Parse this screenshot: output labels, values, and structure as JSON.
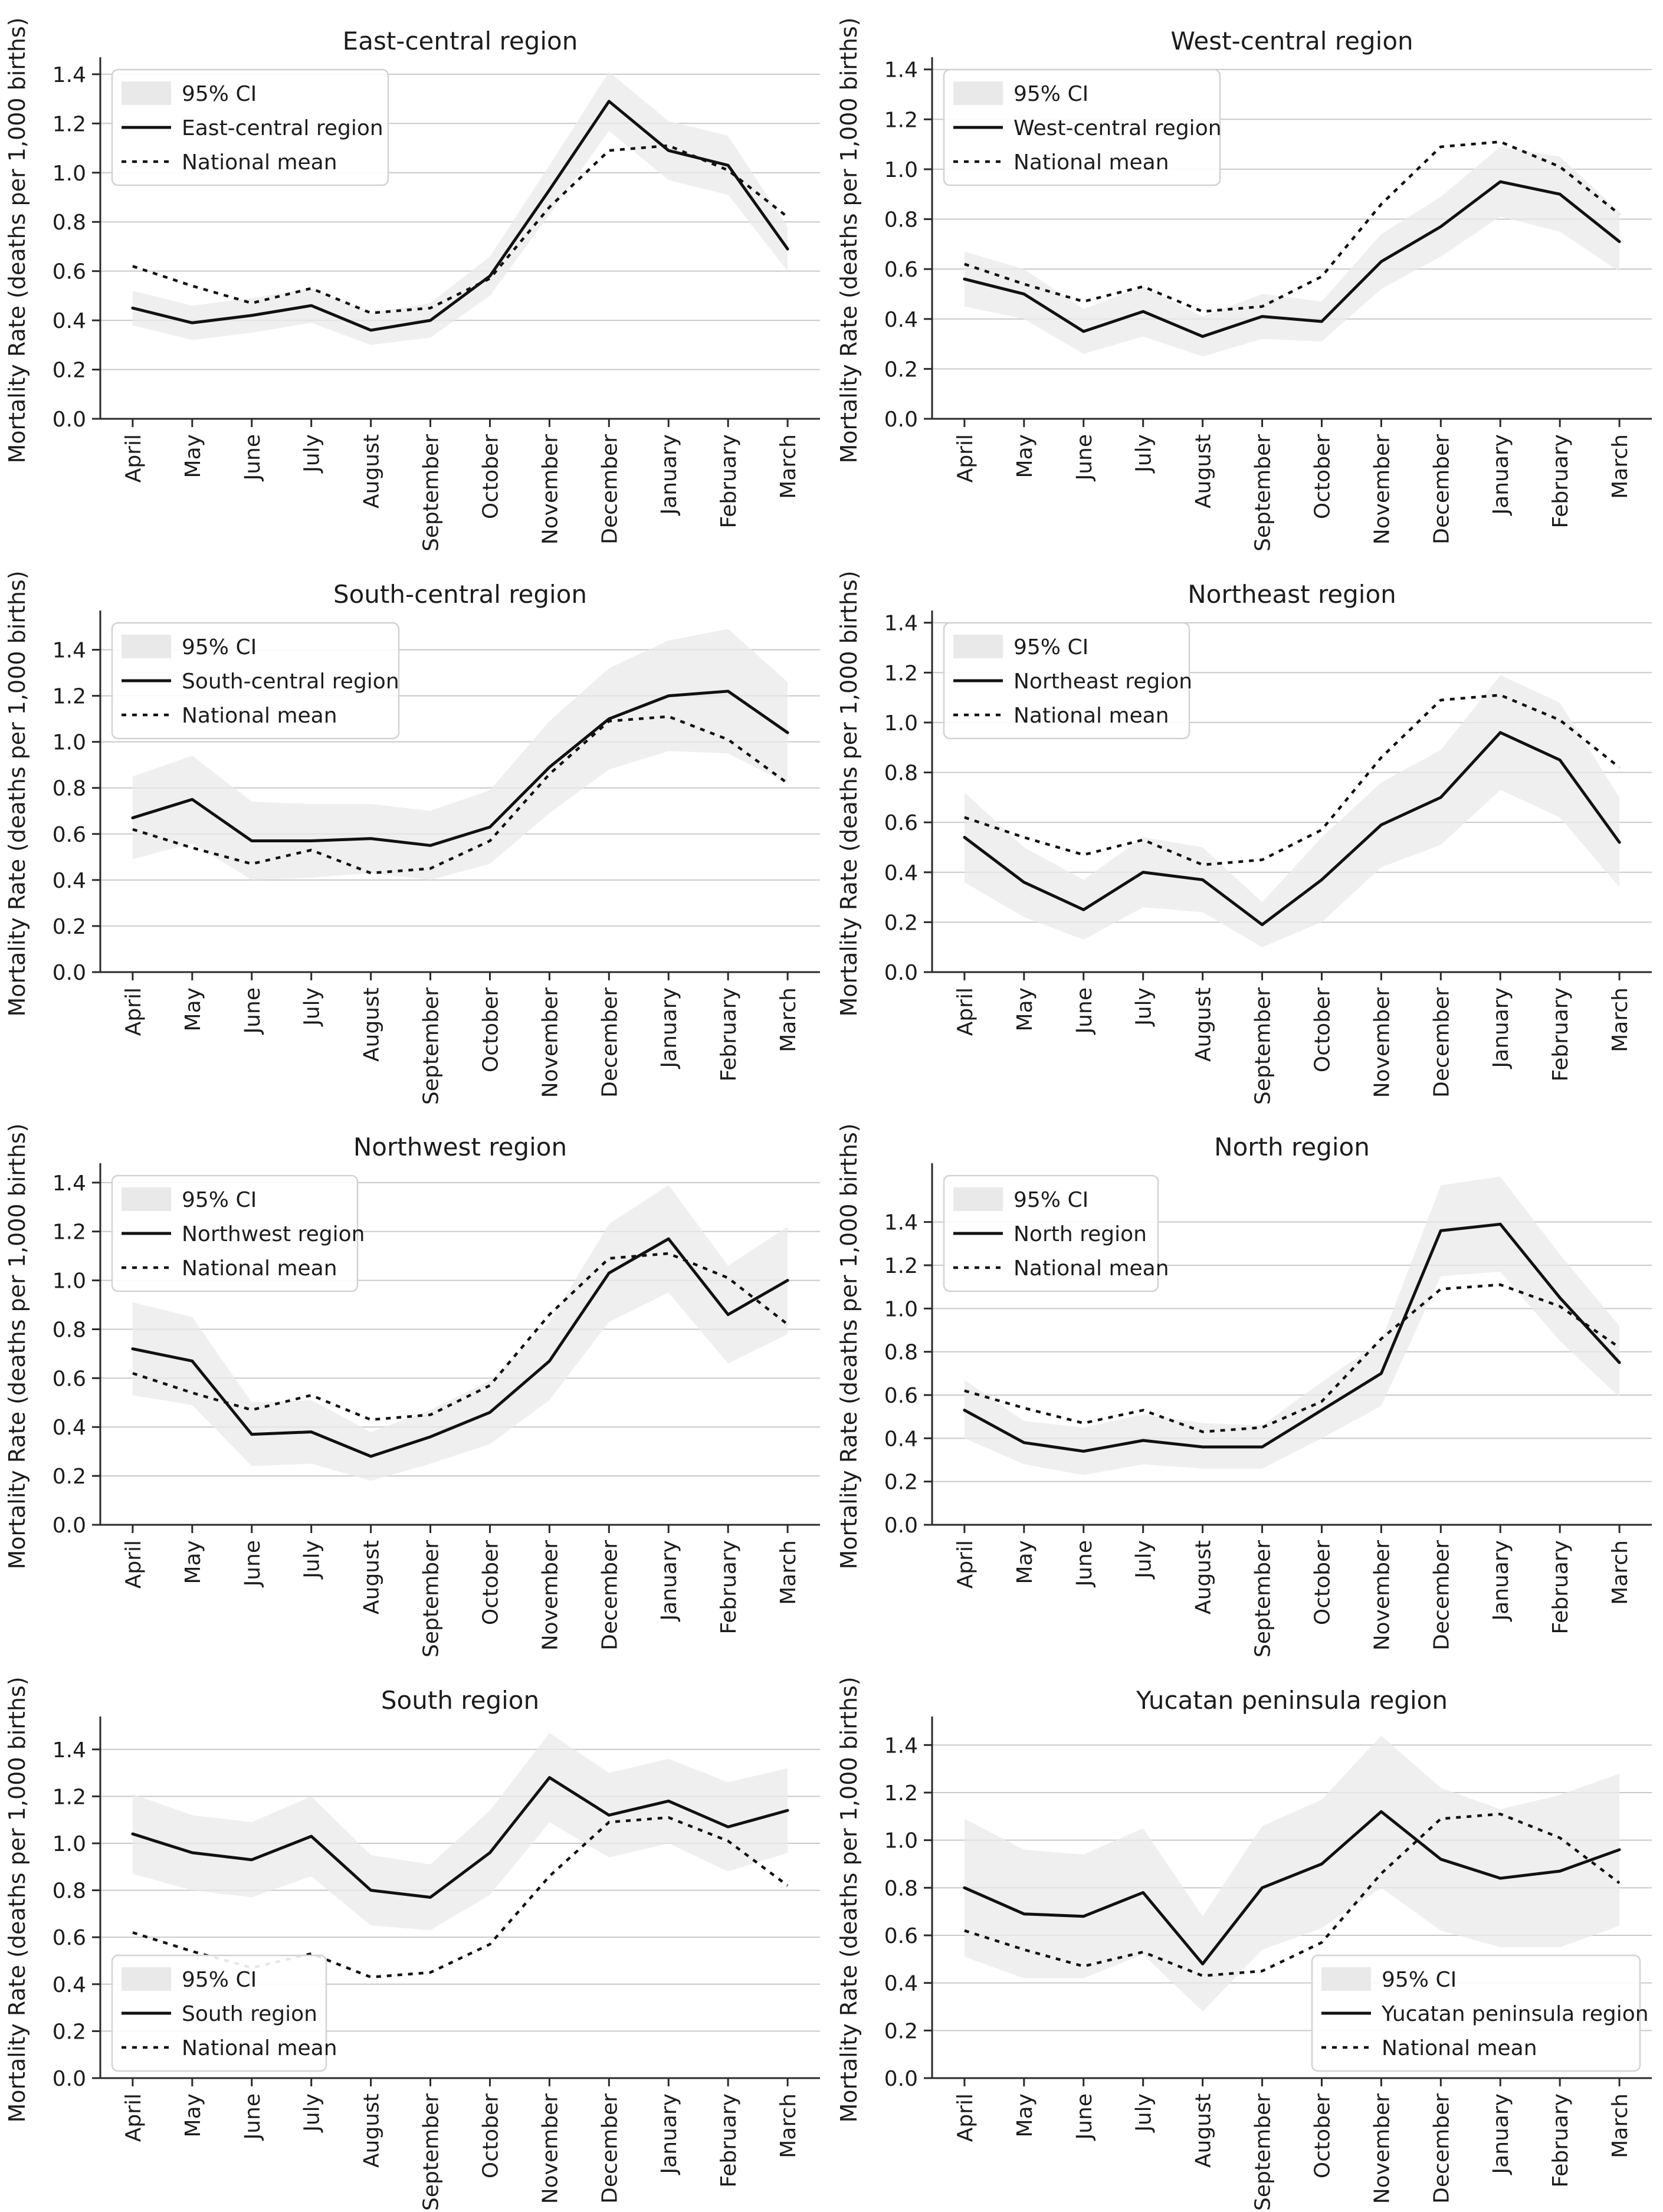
{
  "figure": {
    "ylabel": "Mortality Rate (deaths per 1,000 births)",
    "months": [
      "April",
      "May",
      "June",
      "July",
      "August",
      "September",
      "October",
      "November",
      "December",
      "January",
      "February",
      "March"
    ],
    "ytick_values": [
      0.0,
      0.2,
      0.4,
      0.6,
      0.8,
      1.0,
      1.2,
      1.4
    ],
    "legend": {
      "ci_label": "95% CI",
      "national_label": "National mean"
    },
    "colors": {
      "region_line": "#111111",
      "national_line": "#111111",
      "ci_fill": "#e9e9e9",
      "grid": "#c9c9c9",
      "axis": "#2a2a2a",
      "text": "#1c1c1c",
      "legend_bg": "#ffffff",
      "legend_border": "#d2d2d2"
    },
    "grid": "horizontal-only",
    "x_label_rotation": 90
  },
  "chart_data": [
    {
      "type": "line",
      "title": "East-central region",
      "legend_position": "upper-left",
      "ylim": [
        0,
        1.45
      ],
      "categories": [
        "April",
        "May",
        "June",
        "July",
        "August",
        "September",
        "October",
        "November",
        "December",
        "January",
        "February",
        "March"
      ],
      "series": [
        {
          "name": "East-central region",
          "style": "solid",
          "values": [
            0.45,
            0.39,
            0.42,
            0.46,
            0.36,
            0.4,
            0.58,
            0.93,
            1.29,
            1.09,
            1.03,
            0.69
          ]
        },
        {
          "name": "National mean",
          "style": "dotted",
          "values": [
            0.62,
            0.54,
            0.47,
            0.53,
            0.43,
            0.45,
            0.57,
            0.86,
            1.09,
            1.11,
            1.01,
            0.82
          ]
        }
      ],
      "ci_lower": [
        0.38,
        0.32,
        0.35,
        0.39,
        0.3,
        0.33,
        0.5,
        0.83,
        1.17,
        0.97,
        0.91,
        0.6
      ],
      "ci_upper": [
        0.52,
        0.46,
        0.49,
        0.53,
        0.43,
        0.47,
        0.66,
        1.03,
        1.41,
        1.21,
        1.15,
        0.78
      ]
    },
    {
      "type": "line",
      "title": "West-central region",
      "legend_position": "upper-left",
      "ylim": [
        0,
        1.43
      ],
      "categories": [
        "April",
        "May",
        "June",
        "July",
        "August",
        "September",
        "October",
        "November",
        "December",
        "January",
        "February",
        "March"
      ],
      "series": [
        {
          "name": "West-central region",
          "style": "solid",
          "values": [
            0.56,
            0.5,
            0.35,
            0.43,
            0.33,
            0.41,
            0.39,
            0.63,
            0.77,
            0.95,
            0.9,
            0.71
          ]
        },
        {
          "name": "National mean",
          "style": "dotted",
          "values": [
            0.62,
            0.54,
            0.47,
            0.53,
            0.43,
            0.45,
            0.57,
            0.86,
            1.09,
            1.11,
            1.01,
            0.82
          ]
        }
      ],
      "ci_lower": [
        0.45,
        0.4,
        0.26,
        0.33,
        0.25,
        0.32,
        0.31,
        0.52,
        0.65,
        0.81,
        0.75,
        0.59
      ],
      "ci_upper": [
        0.67,
        0.6,
        0.44,
        0.53,
        0.41,
        0.5,
        0.47,
        0.74,
        0.89,
        1.09,
        1.05,
        0.83
      ]
    },
    {
      "type": "line",
      "title": "South-central region",
      "legend_position": "upper-left",
      "ylim": [
        0,
        1.55
      ],
      "categories": [
        "April",
        "May",
        "June",
        "July",
        "August",
        "September",
        "October",
        "November",
        "December",
        "January",
        "February",
        "March"
      ],
      "series": [
        {
          "name": "South-central region",
          "style": "solid",
          "values": [
            0.67,
            0.75,
            0.57,
            0.57,
            0.58,
            0.55,
            0.63,
            0.89,
            1.1,
            1.2,
            1.22,
            1.04
          ]
        },
        {
          "name": "National mean",
          "style": "dotted",
          "values": [
            0.62,
            0.54,
            0.47,
            0.53,
            0.43,
            0.45,
            0.57,
            0.86,
            1.09,
            1.11,
            1.01,
            0.82
          ]
        }
      ],
      "ci_lower": [
        0.49,
        0.56,
        0.4,
        0.41,
        0.43,
        0.4,
        0.47,
        0.69,
        0.88,
        0.96,
        0.95,
        0.82
      ],
      "ci_upper": [
        0.85,
        0.94,
        0.74,
        0.73,
        0.73,
        0.7,
        0.79,
        1.09,
        1.32,
        1.44,
        1.49,
        1.26
      ]
    },
    {
      "type": "line",
      "title": "Northeast region",
      "legend_position": "upper-left",
      "ylim": [
        0,
        1.43
      ],
      "categories": [
        "April",
        "May",
        "June",
        "July",
        "August",
        "September",
        "October",
        "November",
        "December",
        "January",
        "February",
        "March"
      ],
      "series": [
        {
          "name": "Northeast region",
          "style": "solid",
          "values": [
            0.54,
            0.36,
            0.25,
            0.4,
            0.37,
            0.19,
            0.37,
            0.59,
            0.7,
            0.96,
            0.85,
            0.52
          ]
        },
        {
          "name": "National mean",
          "style": "dotted",
          "values": [
            0.62,
            0.54,
            0.47,
            0.53,
            0.43,
            0.45,
            0.57,
            0.86,
            1.09,
            1.11,
            1.01,
            0.82
          ]
        }
      ],
      "ci_lower": [
        0.36,
        0.22,
        0.13,
        0.26,
        0.24,
        0.1,
        0.2,
        0.42,
        0.51,
        0.73,
        0.62,
        0.34
      ],
      "ci_upper": [
        0.72,
        0.5,
        0.37,
        0.54,
        0.5,
        0.28,
        0.54,
        0.76,
        0.89,
        1.19,
        1.08,
        0.7
      ]
    },
    {
      "type": "line",
      "title": "Northwest region",
      "legend_position": "upper-left",
      "ylim": [
        0,
        1.46
      ],
      "categories": [
        "April",
        "May",
        "June",
        "July",
        "August",
        "September",
        "October",
        "November",
        "December",
        "January",
        "February",
        "March"
      ],
      "series": [
        {
          "name": "Northwest region",
          "style": "solid",
          "values": [
            0.72,
            0.67,
            0.37,
            0.38,
            0.28,
            0.36,
            0.46,
            0.67,
            1.03,
            1.17,
            0.86,
            1.0
          ]
        },
        {
          "name": "National mean",
          "style": "dotted",
          "values": [
            0.62,
            0.54,
            0.47,
            0.53,
            0.43,
            0.45,
            0.57,
            0.86,
            1.09,
            1.11,
            1.01,
            0.82
          ]
        }
      ],
      "ci_lower": [
        0.53,
        0.49,
        0.24,
        0.25,
        0.18,
        0.25,
        0.33,
        0.51,
        0.83,
        0.95,
        0.66,
        0.78
      ],
      "ci_upper": [
        0.91,
        0.85,
        0.5,
        0.51,
        0.38,
        0.47,
        0.59,
        0.83,
        1.23,
        1.39,
        1.06,
        1.22
      ]
    },
    {
      "type": "line",
      "title": "North region",
      "legend_position": "upper-left",
      "ylim": [
        0,
        1.65
      ],
      "categories": [
        "April",
        "May",
        "June",
        "July",
        "August",
        "September",
        "October",
        "November",
        "December",
        "January",
        "February",
        "March"
      ],
      "series": [
        {
          "name": "North region",
          "style": "solid",
          "values": [
            0.53,
            0.38,
            0.34,
            0.39,
            0.36,
            0.36,
            0.53,
            0.7,
            1.36,
            1.39,
            1.05,
            0.75
          ]
        },
        {
          "name": "National mean",
          "style": "dotted",
          "values": [
            0.62,
            0.54,
            0.47,
            0.53,
            0.43,
            0.45,
            0.57,
            0.86,
            1.09,
            1.11,
            1.01,
            0.82
          ]
        }
      ],
      "ci_lower": [
        0.4,
        0.28,
        0.23,
        0.28,
        0.26,
        0.26,
        0.4,
        0.55,
        1.15,
        1.17,
        0.85,
        0.59
      ],
      "ci_upper": [
        0.67,
        0.48,
        0.45,
        0.51,
        0.47,
        0.46,
        0.66,
        0.85,
        1.57,
        1.61,
        1.25,
        0.92
      ]
    },
    {
      "type": "line",
      "title": "South region",
      "legend_position": "lower-left",
      "ylim": [
        0,
        1.52
      ],
      "categories": [
        "April",
        "May",
        "June",
        "July",
        "August",
        "September",
        "October",
        "November",
        "December",
        "January",
        "February",
        "March"
      ],
      "series": [
        {
          "name": "South region",
          "style": "solid",
          "values": [
            1.04,
            0.96,
            0.93,
            1.03,
            0.8,
            0.77,
            0.96,
            1.28,
            1.12,
            1.18,
            1.07,
            1.14
          ]
        },
        {
          "name": "National mean",
          "style": "dotted",
          "values": [
            0.62,
            0.54,
            0.47,
            0.53,
            0.43,
            0.45,
            0.57,
            0.86,
            1.09,
            1.11,
            1.01,
            0.82
          ]
        }
      ],
      "ci_lower": [
        0.87,
        0.8,
        0.77,
        0.86,
        0.65,
        0.63,
        0.78,
        1.09,
        0.94,
        1.0,
        0.88,
        0.96
      ],
      "ci_upper": [
        1.21,
        1.12,
        1.09,
        1.2,
        0.95,
        0.91,
        1.14,
        1.47,
        1.3,
        1.36,
        1.26,
        1.32
      ]
    },
    {
      "type": "line",
      "title": "Yucatan peninsula region",
      "legend_position": "lower-right",
      "ylim": [
        0,
        1.5
      ],
      "categories": [
        "April",
        "May",
        "June",
        "July",
        "August",
        "September",
        "October",
        "November",
        "December",
        "January",
        "February",
        "March"
      ],
      "series": [
        {
          "name": "Yucatan peninsula region",
          "style": "solid",
          "values": [
            0.8,
            0.69,
            0.68,
            0.78,
            0.48,
            0.8,
            0.9,
            1.12,
            0.92,
            0.84,
            0.87,
            0.96
          ]
        },
        {
          "name": "National mean",
          "style": "dotted",
          "values": [
            0.62,
            0.54,
            0.47,
            0.53,
            0.43,
            0.45,
            0.57,
            0.86,
            1.09,
            1.11,
            1.01,
            0.82
          ]
        }
      ],
      "ci_lower": [
        0.51,
        0.42,
        0.42,
        0.52,
        0.28,
        0.54,
        0.63,
        0.8,
        0.62,
        0.55,
        0.55,
        0.64
      ],
      "ci_upper": [
        1.09,
        0.96,
        0.94,
        1.05,
        0.68,
        1.06,
        1.17,
        1.44,
        1.22,
        1.13,
        1.19,
        1.28
      ]
    }
  ]
}
